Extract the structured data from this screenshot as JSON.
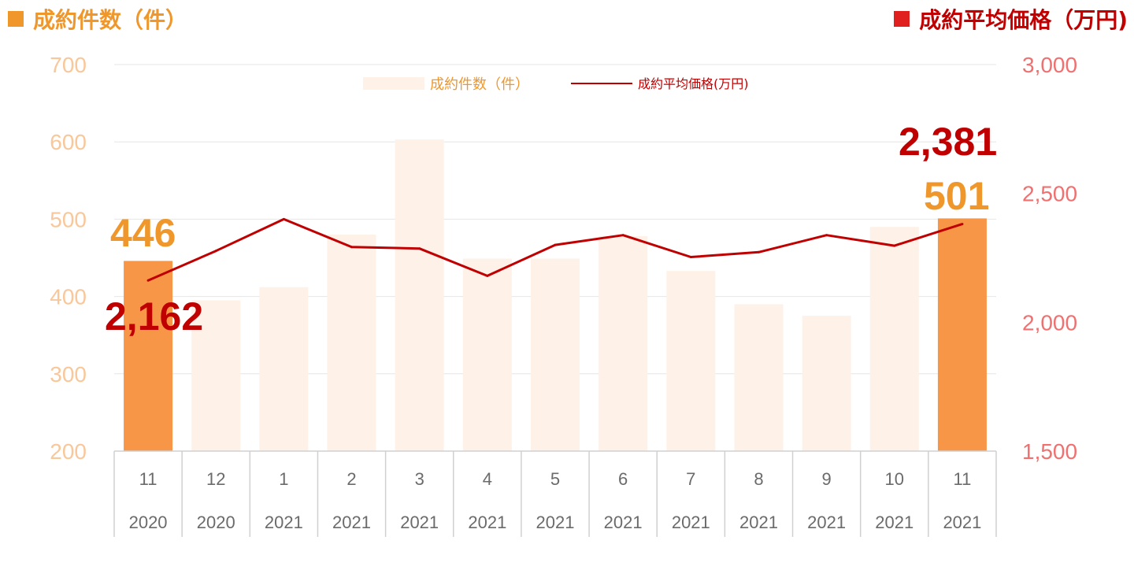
{
  "chart_data": {
    "type": "bar+line",
    "titles": {
      "left": "成約件数（件）",
      "right": "成約平均価格（万円)"
    },
    "legend": {
      "bar": "成約件数（件）",
      "line": "成約平均価格(万円)",
      "placement": "top-center"
    },
    "categories": [
      {
        "month": "11",
        "year": "2020"
      },
      {
        "month": "12",
        "year": "2020"
      },
      {
        "month": "1",
        "year": "2021"
      },
      {
        "month": "2",
        "year": "2021"
      },
      {
        "month": "3",
        "year": "2021"
      },
      {
        "month": "4",
        "year": "2021"
      },
      {
        "month": "5",
        "year": "2021"
      },
      {
        "month": "6",
        "year": "2021"
      },
      {
        "month": "7",
        "year": "2021"
      },
      {
        "month": "8",
        "year": "2021"
      },
      {
        "month": "9",
        "year": "2021"
      },
      {
        "month": "10",
        "year": "2021"
      },
      {
        "month": "11",
        "year": "2021"
      }
    ],
    "series": [
      {
        "name": "成約件数（件）",
        "type": "bar",
        "axis": "left",
        "values": [
          446,
          395,
          412,
          480,
          603,
          449,
          449,
          478,
          433,
          390,
          375,
          490,
          501
        ],
        "highlighted": [
          true,
          false,
          false,
          false,
          false,
          false,
          false,
          false,
          false,
          false,
          false,
          false,
          true
        ]
      },
      {
        "name": "成約平均価格(万円)",
        "type": "line",
        "axis": "right",
        "values": [
          2162,
          2277,
          2400,
          2292,
          2286,
          2180,
          2300,
          2338,
          2253,
          2272,
          2338,
          2297,
          2381
        ]
      }
    ],
    "left_axis": {
      "min": 200,
      "max": 700,
      "ticks": [
        "200",
        "300",
        "400",
        "500",
        "600",
        "700"
      ]
    },
    "right_axis": {
      "min": 1500,
      "max": 3000,
      "ticks": [
        "1,500",
        "2,000",
        "2,500",
        "3,000"
      ]
    },
    "annotations": {
      "bar_first": "446",
      "bar_last": "501",
      "line_first": "2,162",
      "line_last": "2,381"
    },
    "grid": true
  },
  "colors": {
    "bar_highlight": "#f79646",
    "bar_muted": "#fdf1e8",
    "line": "#c00000",
    "left_axis_text": "#f8c79a",
    "right_axis_text": "#f07070",
    "title_left": "#f0972c",
    "title_right": "#c00000"
  }
}
